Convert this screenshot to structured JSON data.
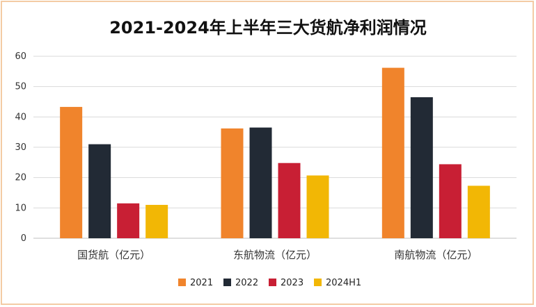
{
  "chart_data": {
    "type": "bar",
    "title": "2021-2024年上半年三大货航净利润情况",
    "xlabel": "",
    "ylabel": "",
    "categories": [
      "国货航（亿元）",
      "东航物流（亿元）",
      "南航物流（亿元）"
    ],
    "series": [
      {
        "name": "2021",
        "color": "#f0842c",
        "values": [
          43.3,
          36.2,
          56.2
        ]
      },
      {
        "name": "2022",
        "color": "#222a35",
        "values": [
          31.0,
          36.5,
          46.5
        ]
      },
      {
        "name": "2023",
        "color": "#c81f34",
        "values": [
          11.5,
          24.8,
          24.4
        ]
      },
      {
        "name": "2024H1",
        "color": "#f2b705",
        "values": [
          11.0,
          20.7,
          17.3
        ]
      }
    ],
    "ylim": [
      0,
      60
    ],
    "yticks": [
      "0",
      "10",
      "20",
      "30",
      "40",
      "50",
      "60"
    ],
    "grid": true,
    "legend_position": "bottom"
  }
}
